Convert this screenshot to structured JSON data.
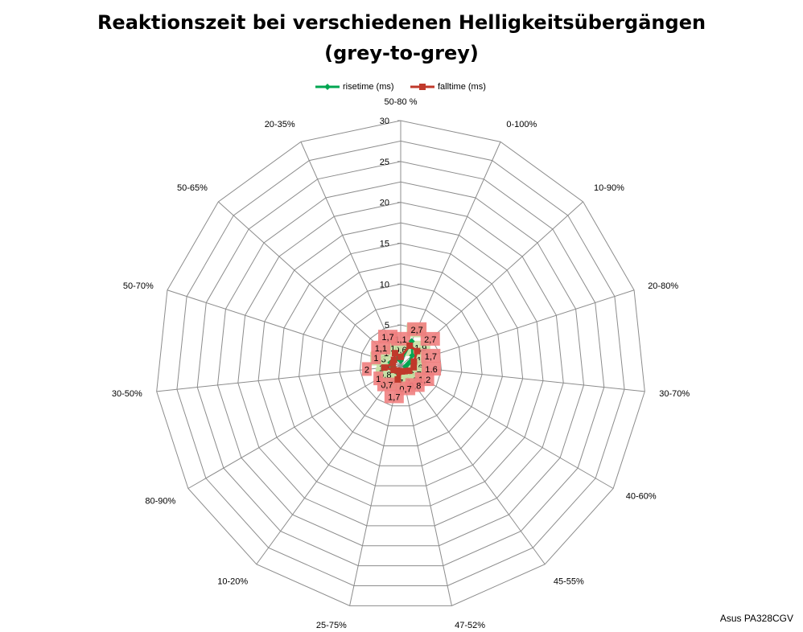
{
  "chart_data": {
    "type": "radar",
    "title_line1": "Reaktionszeit bei verschiedenen Helligkeitsübergängen",
    "title_line2": "(grey-to-grey)",
    "categories": [
      "50-80 %",
      "0-100%",
      "10-90%",
      "20-80%",
      "30-70%",
      "40-60%",
      "45-55%",
      "47-52%",
      "25-75%",
      "10-20%",
      "80-90%",
      "30-50%",
      "50-70%",
      "50-65%",
      "20-35%"
    ],
    "rlim": [
      0,
      30
    ],
    "ticks": [
      0,
      5,
      10,
      15,
      20,
      25,
      30
    ],
    "tick_labels": [
      "0",
      "5",
      "10",
      "15",
      "20",
      "25",
      "30"
    ],
    "grid": true,
    "legend_position": "top",
    "series": [
      {
        "name": "risetime (ms)",
        "color": "#00a651",
        "label_bg": "#c6e0a4",
        "values": [
          0.6,
          3.3,
          1.9,
          1,
          0.6,
          0.7,
          0.8,
          0.7,
          0.7,
          0.9,
          0.8,
          1,
          1.3,
          1,
          1
        ],
        "labels": [
          "0,6",
          "3,3",
          "1,9",
          "1",
          "0,6",
          "0,7",
          "0,8",
          "0,7",
          "0,7",
          "0,9",
          "0,8",
          "1",
          "1,3",
          "1",
          "1"
        ]
      },
      {
        "name": "falltime (ms)",
        "color": "#c0392b",
        "label_bg": "#f08080",
        "values": [
          1.1,
          2.7,
          2.7,
          1.7,
          1.6,
          1.2,
          0.8,
          0.7,
          1.7,
          0.7,
          1,
          2,
          1,
          1.1,
          1.7
        ],
        "labels": [
          "1,1",
          "2,7",
          "2,7",
          "1,7",
          "1,6",
          "1,2",
          "0,8",
          "0,7",
          "1,7",
          "0,7",
          "1",
          "2",
          "1",
          "1,1",
          "1,7"
        ]
      }
    ]
  },
  "credit": "Asus PA328CGV"
}
